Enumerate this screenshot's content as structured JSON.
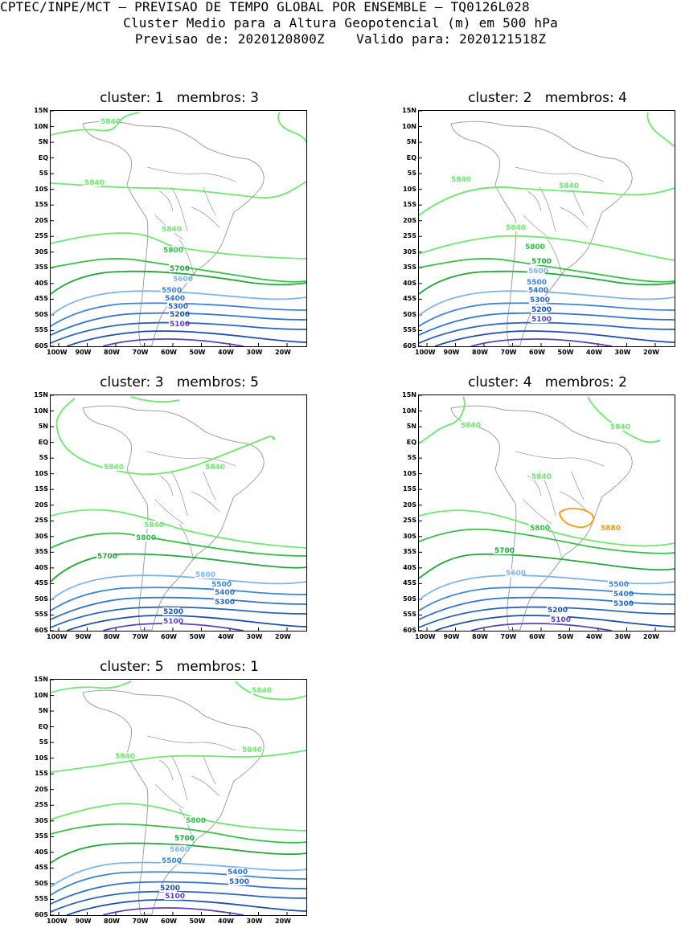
{
  "header": {
    "line1": "CPTEC/INPE/MCT – PREVISAO DE TEMPO GLOBAL POR ENSEMBLE – TQ0126L028",
    "line2": "Cluster Medio para a Altura Geopotencial (m) em 500 hPa",
    "line3": "Previsao de: 2020120800Z    Valido para: 2020121518Z"
  },
  "colors": {
    "c5100": "#5a3fbf",
    "c5200": "#1f4fb0",
    "c5300": "#2a63c4",
    "c5400": "#2f72cf",
    "c5500": "#3b86d9",
    "c5600": "#7fb4ee",
    "c5700": "#21a83a",
    "c5800": "#36c048",
    "c5840": "#6de870",
    "c5880": "#f59a10",
    "coast": "#a0a0a0"
  },
  "axes": {
    "lat_labels": [
      "15N",
      "10N",
      "5N",
      "EQ",
      "5S",
      "10S",
      "15S",
      "20S",
      "25S",
      "30S",
      "35S",
      "40S",
      "45S",
      "50S",
      "55S",
      "60S"
    ],
    "lon_labels": [
      "100W",
      "90W",
      "80W",
      "70W",
      "60W",
      "50W",
      "40W",
      "30W",
      "20W"
    ]
  },
  "clusters": [
    {
      "title": "cluster: 1   membros: 3",
      "contours": [
        {
          "v": "5840",
          "label": "5840"
        },
        {
          "v": "5840b",
          "label": "5840"
        },
        {
          "v": "5840c",
          "label": "5840"
        },
        {
          "v": "5800",
          "label": "5800"
        },
        {
          "v": "5700",
          "label": "5700"
        },
        {
          "v": "5600",
          "label": "5600"
        },
        {
          "v": "5500",
          "label": "5500"
        },
        {
          "v": "5400",
          "label": "5400"
        },
        {
          "v": "5300",
          "label": "5300"
        },
        {
          "v": "5200",
          "label": "5200"
        },
        {
          "v": "5100",
          "label": "5100"
        }
      ]
    },
    {
      "title": "cluster: 2   membros: 4",
      "contours": [
        {
          "v": "5840",
          "label": "5840"
        },
        {
          "v": "5840b",
          "label": "5840"
        },
        {
          "v": "5840c",
          "label": "5840"
        },
        {
          "v": "5800",
          "label": "5800"
        },
        {
          "v": "5700",
          "label": "5700"
        },
        {
          "v": "5600",
          "label": "5600"
        },
        {
          "v": "5500",
          "label": "5500"
        },
        {
          "v": "5400",
          "label": "5400"
        },
        {
          "v": "5300",
          "label": "5300"
        },
        {
          "v": "5200",
          "label": "5200"
        },
        {
          "v": "5100",
          "label": "5100"
        }
      ]
    },
    {
      "title": "cluster: 3   membros: 5",
      "contours": [
        {
          "v": "5840",
          "label": "5840"
        },
        {
          "v": "5840b",
          "label": "5840"
        },
        {
          "v": "5840c",
          "label": "5840"
        },
        {
          "v": "5800",
          "label": "5800"
        },
        {
          "v": "5700",
          "label": "5700"
        },
        {
          "v": "5600",
          "label": "5600"
        },
        {
          "v": "5500",
          "label": "5500"
        },
        {
          "v": "5400",
          "label": "5400"
        },
        {
          "v": "5300",
          "label": "5300"
        },
        {
          "v": "5200",
          "label": "5200"
        },
        {
          "v": "5100",
          "label": "5100"
        }
      ]
    },
    {
      "title": "cluster: 4   membros: 2",
      "contours": [
        {
          "v": "5840",
          "label": "5840"
        },
        {
          "v": "5840b",
          "label": "5840"
        },
        {
          "v": "5840c",
          "label": "5840"
        },
        {
          "v": "5880",
          "label": "5880"
        },
        {
          "v": "5800",
          "label": "5800"
        },
        {
          "v": "5700",
          "label": "5700"
        },
        {
          "v": "5600",
          "label": "5600"
        },
        {
          "v": "5500",
          "label": "5500"
        },
        {
          "v": "5400",
          "label": "5400"
        },
        {
          "v": "5300",
          "label": "5300"
        },
        {
          "v": "5200",
          "label": "5200"
        },
        {
          "v": "5100",
          "label": "5100"
        }
      ]
    },
    {
      "title": "cluster: 5   membros: 1",
      "contours": [
        {
          "v": "5840",
          "label": "5840"
        },
        {
          "v": "5840b",
          "label": "5840"
        },
        {
          "v": "5840c",
          "label": "5840"
        },
        {
          "v": "5800",
          "label": "5800"
        },
        {
          "v": "5700",
          "label": "5700"
        },
        {
          "v": "5600",
          "label": "5600"
        },
        {
          "v": "5500",
          "label": "5500"
        },
        {
          "v": "5400",
          "label": "5400"
        },
        {
          "v": "5300",
          "label": "5300"
        },
        {
          "v": "5200",
          "label": "5200"
        },
        {
          "v": "5100",
          "label": "5100"
        }
      ]
    }
  ]
}
